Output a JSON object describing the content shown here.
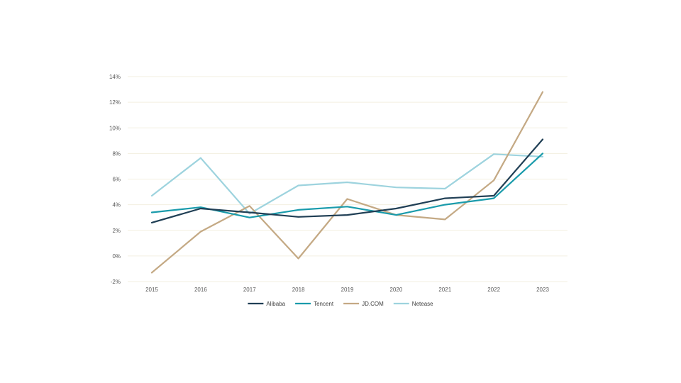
{
  "chart_data": {
    "type": "line",
    "title": "",
    "xlabel": "",
    "ylabel": "",
    "categories": [
      "2015",
      "2016",
      "2017",
      "2018",
      "2019",
      "2020",
      "2021",
      "2022",
      "2023"
    ],
    "ylim": [
      -2,
      14
    ],
    "yticks": [
      -2,
      0,
      2,
      4,
      6,
      8,
      10,
      12,
      14
    ],
    "ytick_labels": [
      "-2%",
      "0%",
      "2%",
      "4%",
      "6%",
      "8%",
      "10%",
      "12%",
      "14%"
    ],
    "grid": true,
    "legend_position": "bottom",
    "series": [
      {
        "name": "Alibaba",
        "color": "#203f55",
        "values": [
          2.6,
          3.7,
          3.4,
          3.05,
          3.2,
          3.7,
          4.5,
          4.7,
          9.1
        ]
      },
      {
        "name": "Tencent",
        "color": "#1a9bab",
        "values": [
          3.4,
          3.8,
          3.0,
          3.6,
          3.85,
          3.2,
          4.0,
          4.5,
          8.0
        ]
      },
      {
        "name": "JD.COM",
        "color": "#c4a984",
        "values": [
          -1.3,
          1.9,
          3.9,
          -0.2,
          4.45,
          3.2,
          2.85,
          5.9,
          12.8
        ]
      },
      {
        "name": "Netease",
        "color": "#9dd3de",
        "values": [
          4.7,
          7.65,
          3.3,
          5.5,
          5.75,
          5.35,
          5.25,
          7.95,
          7.75
        ]
      }
    ]
  }
}
